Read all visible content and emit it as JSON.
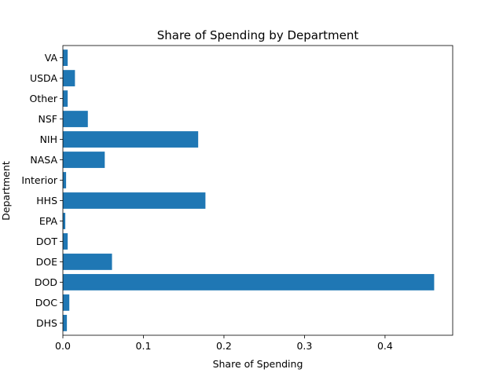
{
  "chart_data": {
    "type": "bar",
    "orientation": "horizontal",
    "title": "Share of Spending by Department",
    "xlabel": "Share of Spending",
    "ylabel": "Department",
    "categories": [
      "DHS",
      "DOC",
      "DOD",
      "DOE",
      "DOT",
      "EPA",
      "HHS",
      "Interior",
      "NASA",
      "NIH",
      "NSF",
      "Other",
      "USDA",
      "VA"
    ],
    "values": [
      0.005,
      0.008,
      0.461,
      0.061,
      0.006,
      0.003,
      0.177,
      0.004,
      0.052,
      0.168,
      0.031,
      0.006,
      0.015,
      0.006
    ],
    "xlim": [
      0,
      0.484
    ],
    "xticks": [
      0.0,
      0.1,
      0.2,
      0.3,
      0.4
    ],
    "xtick_labels": [
      "0.0",
      "0.1",
      "0.2",
      "0.3",
      "0.4"
    ],
    "grid": false,
    "legend": "none",
    "bar_color": "#1f77b4"
  }
}
